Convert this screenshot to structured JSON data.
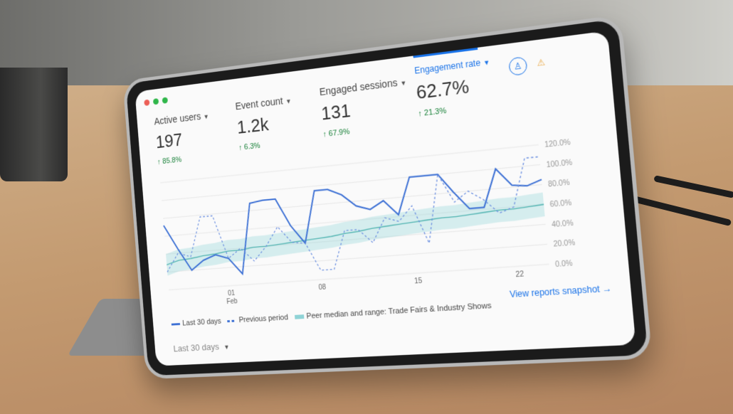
{
  "window": {
    "controls": [
      "close",
      "minimize",
      "maximize"
    ],
    "colors": [
      "#ec5f57",
      "#2fb64a",
      "#2fb64a"
    ]
  },
  "metrics": [
    {
      "label": "Active users",
      "value": "197",
      "change": "85.8%",
      "active": false
    },
    {
      "label": "Event count",
      "value": "1.2k",
      "change": "6.3%",
      "active": false
    },
    {
      "label": "Engaged sessions",
      "value": "131",
      "change": "67.9%",
      "active": false
    },
    {
      "label": "Engagement rate",
      "value": "62.7%",
      "change": "21.3%",
      "active": true
    }
  ],
  "header_icons": [
    "insights-icon",
    "warning-icon"
  ],
  "chart_data": {
    "type": "line",
    "x_tick_labels": [
      "01\nFeb",
      "08",
      "15",
      "22"
    ],
    "y_tick_labels": [
      "120.0%",
      "100.0%",
      "80.0%",
      "60.0%",
      "40.0%",
      "20.0%",
      "0.0%"
    ],
    "ylim": [
      0,
      120
    ],
    "series": [
      {
        "name": "Last 30 days",
        "style": "solid",
        "color": "#3b6fd4",
        "values": [
          72,
          45,
          20,
          30,
          35,
          30,
          12,
          88,
          90,
          90,
          60,
          40,
          95,
          95,
          88,
          75,
          70,
          78,
          62,
          100,
          100,
          100,
          80,
          62,
          62,
          100,
          82,
          80,
          85
        ]
      },
      {
        "name": "Previous period",
        "style": "dashed",
        "color": "#6b8fe0",
        "values": [
          20,
          40,
          35,
          78,
          78,
          30,
          40,
          25,
          40,
          60,
          42,
          40,
          10,
          10,
          50,
          50,
          35,
          60,
          55,
          70,
          30,
          100,
          70,
          80,
          70,
          55,
          60,
          108,
          108
        ]
      },
      {
        "name": "Peer median and range: Trade Fairs & Industry Shows",
        "style": "band",
        "color": "#8fd3d6",
        "values": [
          28,
          32,
          33,
          35,
          36,
          38,
          38,
          40,
          40,
          41,
          42,
          43,
          44,
          45,
          47,
          48,
          50,
          51,
          52,
          53,
          54,
          55,
          55,
          56,
          57,
          58,
          58,
          59,
          60
        ]
      }
    ]
  },
  "legend": {
    "last": "Last 30 days",
    "previous": "Previous period",
    "peer": "Peer median and range: Trade Fairs & Industry Shows"
  },
  "snapshot_link": "View reports snapshot",
  "date_range": "Last 30 days"
}
